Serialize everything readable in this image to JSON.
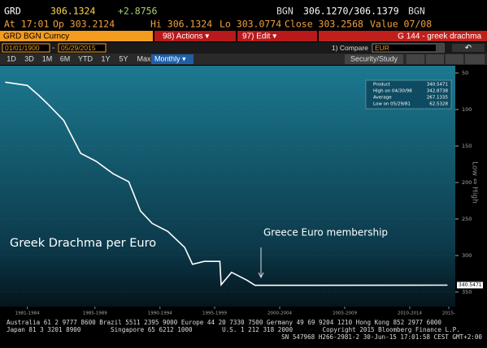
{
  "header": {
    "ticker": "GRD",
    "price": "306.1324",
    "change": "+2.8756",
    "source": "BGN",
    "bid_ask": "306.1270/306.1379",
    "source2": "BGN",
    "quote_line": [
      "At 17:01",
      "Op 303.2124",
      "Hi 306.1324",
      "Lo 303.0774",
      "Close 303.2568",
      "Value 07/08"
    ]
  },
  "toolbar": {
    "security": "GRD BGN Curncy",
    "actions": "98) Actions ▾",
    "edit": "97) Edit ▾",
    "function_title": "G 144 - greek drachma",
    "start_date": "01/01/1900",
    "end_date": "05/29/2015",
    "compare": "1) Compare",
    "compare_value": "EUR",
    "study": "Security/Study",
    "periods": [
      "1D",
      "3D",
      "1M",
      "6M",
      "YTD",
      "1Y",
      "5Y",
      "Max"
    ],
    "frequency": "Monthly ▾"
  },
  "chart_data": {
    "type": "line",
    "y_label": "Low ⇔ High",
    "y_inverted": true,
    "x": [
      1981.4,
      1983.1,
      1984.0,
      1984.7,
      1985.9,
      1987.2,
      1988.4,
      1989.7,
      1990.9,
      1991.8,
      1992.7,
      1993.9,
      1995.2,
      1995.8,
      1996.7,
      1997.9,
      1998.0,
      1998.8,
      2000.0,
      2000.6,
      2015.4
    ],
    "series": [
      {
        "name": "Product",
        "color": "#ffffff",
        "values": [
          62.5,
          67,
          81,
          93,
          115,
          160,
          171,
          188,
          199,
          239,
          256,
          267,
          289,
          312,
          308,
          308,
          340,
          323,
          334,
          340.75,
          340.5471
        ]
      }
    ],
    "xlim": [
      1981,
      2016
    ],
    "ylim": [
      40,
      370
    ],
    "xticks": [
      {
        "value": 1983.1,
        "label": "1981-1984"
      },
      {
        "value": 1988.3,
        "label": "1985-1989"
      },
      {
        "value": 1993.3,
        "label": "1990-1994"
      },
      {
        "value": 1997.5,
        "label": "1995-1999"
      },
      {
        "value": 2002.5,
        "label": "2000-2004"
      },
      {
        "value": 2007.5,
        "label": "2005-2009"
      },
      {
        "value": 2012.5,
        "label": "2010-2014"
      },
      {
        "value": 2015.5,
        "label": "2015-"
      }
    ],
    "yticks": [
      50,
      100,
      150,
      200,
      250,
      300,
      350
    ],
    "legend_stats": [
      {
        "label": "Product",
        "value": "340.5471"
      },
      {
        "label": "High on 04/30/98",
        "value": "342.8738"
      },
      {
        "label": "Average",
        "value": "267.1335"
      },
      {
        "label": "Low on 05/29/81",
        "value": "62.5328"
      }
    ],
    "last_value": "340.5471",
    "annotations": [
      "Greek Drachma per Euro",
      "Greece Euro membership"
    ]
  },
  "footer": [
    "Australia 61 2 9777 8600 Brazil 5511 2395 9000 Europe 44 20 7330 7500 Germany 49 69 9204 1210 Hong Kong 852 2977 6000",
    "Japan 81 3 3201 8900        Singapore 65 6212 1000        U.S. 1 212 318 2000        Copyright 2015 Bloomberg Finance L.P.",
    "SN 547968 H266-2981-2 30-Jun-15 17:01:58 CEST GMT+2:00"
  ]
}
